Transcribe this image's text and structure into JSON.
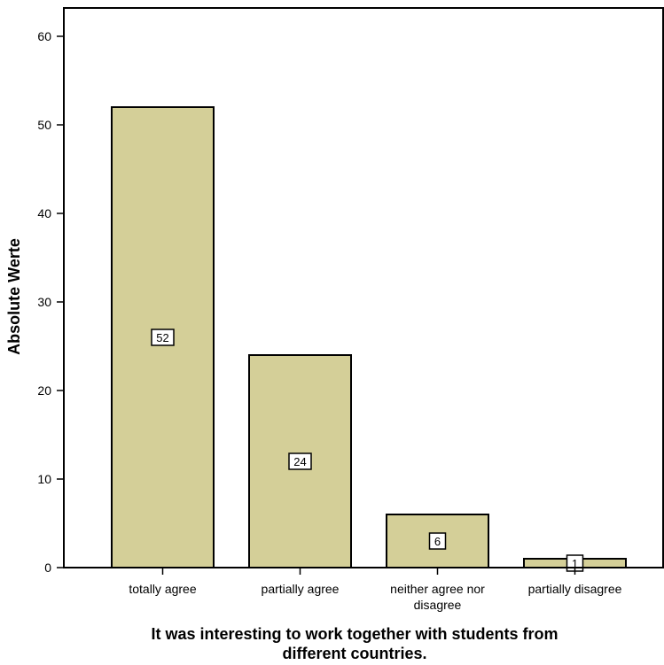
{
  "chart_data": {
    "type": "bar",
    "categories": [
      [
        "totally agree"
      ],
      [
        "partially agree"
      ],
      [
        "neither agree nor",
        "disagree"
      ],
      [
        "partially disagree"
      ]
    ],
    "values": [
      52,
      24,
      6,
      1
    ],
    "ylabel": "Absolute Werte",
    "xlabel": [
      "It was interesting to work together with students from",
      "different countries."
    ],
    "ylim": [
      0,
      60
    ],
    "yticks": [
      0,
      10,
      20,
      30,
      40,
      50,
      60
    ],
    "grid": false,
    "legend": "none",
    "bar_color": "#d4cf98",
    "bar_edge_color": "#000000",
    "label_box_color": "#ffffff"
  }
}
